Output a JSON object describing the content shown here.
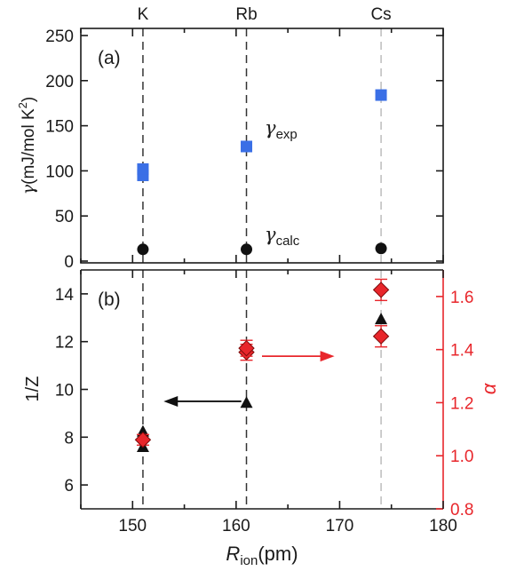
{
  "chart_data": [
    {
      "panel_label": "(a)",
      "type": "scatter",
      "ylabel_symbol": "γ",
      "ylabel_unit": "(mJ/mol K",
      "ylabel_sup": "2",
      "ylabel_close": ")",
      "xlim": [
        145,
        180
      ],
      "ylim": [
        0,
        250
      ],
      "yticks": [
        "0",
        "50",
        "100",
        "150",
        "200",
        "250"
      ],
      "top_labels": [
        {
          "text": "K",
          "x": 151
        },
        {
          "text": "Rb",
          "x": 161
        },
        {
          "text": "Cs",
          "x": 174
        }
      ],
      "series": [
        {
          "name_sym": "γ",
          "name_sub": "exp",
          "marker": "square",
          "color": "#3a6fe6",
          "points": [
            {
              "x": 151,
              "y": 95
            },
            {
              "x": 151,
              "y": 102
            },
            {
              "x": 161,
              "y": 127
            },
            {
              "x": 174,
              "y": 184
            }
          ]
        },
        {
          "name_sym": "γ",
          "name_sub": "calc",
          "marker": "circle",
          "color": "#111111",
          "points": [
            {
              "x": 151,
              "y": 13
            },
            {
              "x": 161,
              "y": 13
            },
            {
              "x": 174,
              "y": 14
            }
          ]
        }
      ]
    },
    {
      "panel_label": "(b)",
      "type": "scatter",
      "xlabel_main": "R",
      "xlabel_sub": "ion",
      "xlabel_unit": "(pm)",
      "ylabel_left": "1/Z",
      "ylabel_right": "α",
      "xlim": [
        145,
        180
      ],
      "xticks": [
        "150",
        "160",
        "170",
        "180"
      ],
      "ylim_left": [
        5,
        15
      ],
      "yticks_left": [
        "6",
        "8",
        "10",
        "12",
        "14"
      ],
      "ylim_right": [
        0.8,
        1.7
      ],
      "yticks_right": [
        "0.8",
        "1.0",
        "1.2",
        "1.4",
        "1.6"
      ],
      "series": [
        {
          "name": "1/Z",
          "axis": "left",
          "marker": "triangle",
          "color": "#111111",
          "points": [
            {
              "x": 151,
              "y": 7.6
            },
            {
              "x": 151,
              "y": 8.25
            },
            {
              "x": 161,
              "y": 9.45
            },
            {
              "x": 174,
              "y": 12.95
            }
          ]
        },
        {
          "name": "α",
          "axis": "right",
          "marker": "diamond",
          "color": "#e8262b",
          "points": [
            {
              "x": 151,
              "y": 1.06,
              "err": 0.02
            },
            {
              "x": 161,
              "y": 1.39,
              "err": 0.03
            },
            {
              "x": 161,
              "y": 1.405,
              "err": 0.03
            },
            {
              "x": 174,
              "y": 1.45,
              "err": 0.04
            },
            {
              "x": 174,
              "y": 1.625,
              "err": 0.04
            }
          ]
        }
      ],
      "arrows": [
        {
          "direction": "left",
          "color": "#111111",
          "from_x": 160.5,
          "to_x": 153,
          "y": 9.5
        },
        {
          "direction": "right",
          "color": "#e8262b",
          "from_x": 162.5,
          "to_x": 169.5,
          "y": 1.375
        }
      ]
    }
  ]
}
